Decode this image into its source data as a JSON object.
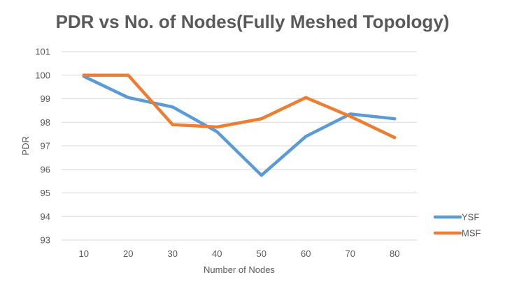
{
  "chart_data": {
    "type": "line",
    "title": "PDR vs No. of Nodes(Fully Meshed Topology)",
    "xlabel": "Number of Nodes",
    "ylabel": "PDR",
    "categories": [
      "10",
      "20",
      "30",
      "40",
      "50",
      "60",
      "70",
      "80"
    ],
    "y_ticks": [
      "101",
      "100",
      "99",
      "98",
      "97",
      "96",
      "95",
      "94",
      "93"
    ],
    "ylim": [
      93,
      101
    ],
    "grid": true,
    "legend_position": "right",
    "series": [
      {
        "name": "YSF",
        "color": "#5b9bd5",
        "values": [
          99.95,
          99.05,
          98.65,
          97.6,
          95.75,
          97.4,
          98.35,
          98.15
        ]
      },
      {
        "name": "MSF",
        "color": "#ed7d31",
        "values": [
          100.0,
          100.0,
          97.9,
          97.8,
          98.15,
          99.05,
          98.25,
          97.35
        ]
      }
    ]
  }
}
